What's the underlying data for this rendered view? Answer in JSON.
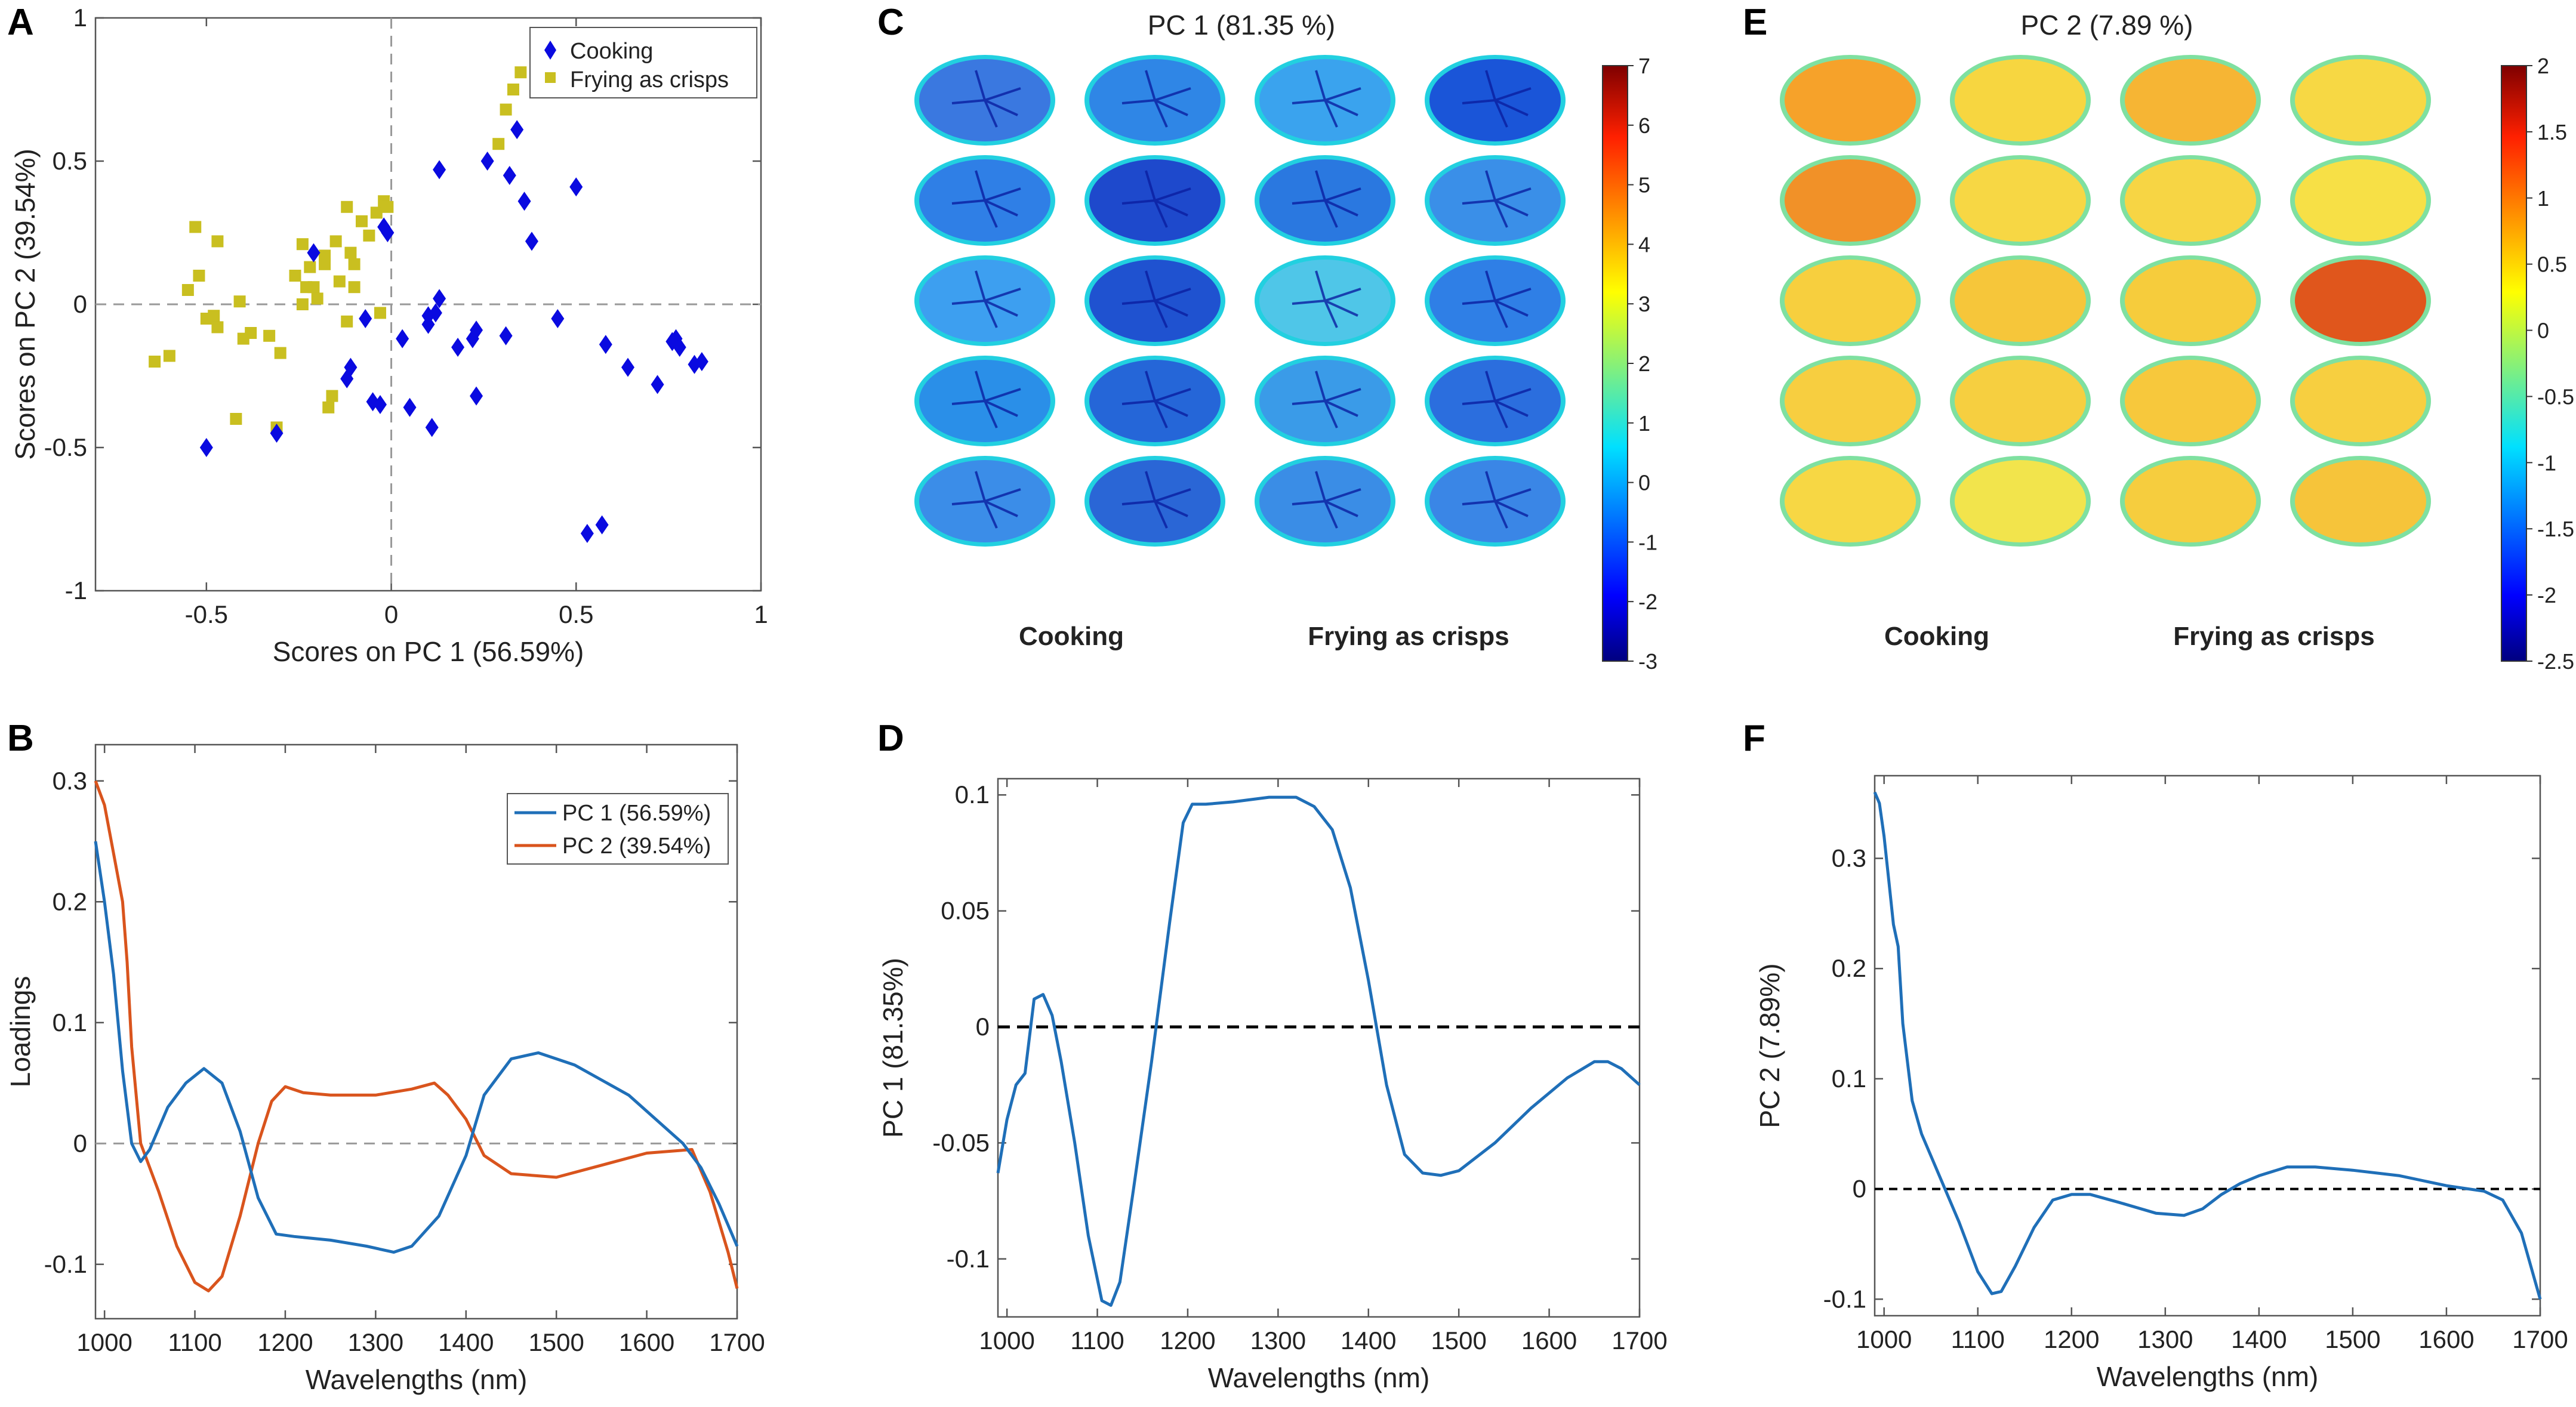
{
  "panels": {
    "A": "A",
    "B": "B",
    "C": "C",
    "D": "D",
    "E": "E",
    "F": "F"
  },
  "colors": {
    "pc1": "#1f6fb8",
    "pc2": "#d9541d",
    "cooking": "#0a0ae0",
    "frying": "#c9bf20",
    "dash": "#999999"
  },
  "chart_data": [
    {
      "id": "A",
      "type": "scatter",
      "title": "",
      "xlabel": "Scores on PC 1 (56.59%)",
      "ylabel": "Scores on PC 2 (39.54%)",
      "xlim": [
        -0.8,
        1.0
      ],
      "ylim": [
        -1.0,
        1.0
      ],
      "xticks": [
        "-0.5",
        "0",
        "0.5",
        "1"
      ],
      "xtick_values": [
        -0.5,
        0,
        0.5,
        1
      ],
      "yticks": [
        "-1",
        "-0.5",
        "0",
        "0.5",
        "1"
      ],
      "ytick_values": [
        -1,
        -0.5,
        0,
        0.5,
        1
      ],
      "legend": [
        "Cooking",
        "Frying as crisps"
      ],
      "series": [
        {
          "name": "Cooking",
          "points": [
            [
              -0.5,
              -0.5
            ],
            [
              -0.31,
              -0.45
            ],
            [
              -0.21,
              0.18
            ],
            [
              -0.11,
              -0.22
            ],
            [
              -0.12,
              -0.26
            ],
            [
              -0.07,
              -0.05
            ],
            [
              -0.05,
              -0.34
            ],
            [
              -0.03,
              -0.35
            ],
            [
              -0.02,
              0.27
            ],
            [
              -0.01,
              0.25
            ],
            [
              0.03,
              -0.12
            ],
            [
              0.05,
              -0.36
            ],
            [
              0.1,
              -0.04
            ],
            [
              0.1,
              -0.07
            ],
            [
              0.12,
              -0.03
            ],
            [
              0.13,
              0.02
            ],
            [
              0.11,
              -0.43
            ],
            [
              0.13,
              0.47
            ],
            [
              0.18,
              -0.15
            ],
            [
              0.22,
              -0.12
            ],
            [
              0.23,
              -0.09
            ],
            [
              0.23,
              -0.32
            ],
            [
              0.26,
              0.5
            ],
            [
              0.31,
              -0.11
            ],
            [
              0.32,
              0.45
            ],
            [
              0.34,
              0.61
            ],
            [
              0.36,
              0.36
            ],
            [
              0.38,
              0.22
            ],
            [
              0.45,
              -0.05
            ],
            [
              0.5,
              0.41
            ],
            [
              0.53,
              -0.8
            ],
            [
              0.57,
              -0.77
            ],
            [
              0.58,
              -0.14
            ],
            [
              0.64,
              -0.22
            ],
            [
              0.72,
              -0.28
            ],
            [
              0.76,
              -0.13
            ],
            [
              0.77,
              -0.12
            ],
            [
              0.78,
              -0.15
            ],
            [
              0.82,
              -0.21
            ],
            [
              0.84,
              -0.2
            ]
          ]
        },
        {
          "name": "Frying as crisps",
          "points": [
            [
              -0.64,
              -0.2
            ],
            [
              -0.6,
              -0.18
            ],
            [
              -0.55,
              0.05
            ],
            [
              -0.53,
              0.27
            ],
            [
              -0.52,
              0.1
            ],
            [
              -0.5,
              -0.05
            ],
            [
              -0.48,
              -0.04
            ],
            [
              -0.47,
              -0.08
            ],
            [
              -0.47,
              0.22
            ],
            [
              -0.42,
              -0.4
            ],
            [
              -0.41,
              0.01
            ],
            [
              -0.4,
              -0.12
            ],
            [
              -0.38,
              -0.1
            ],
            [
              -0.33,
              -0.11
            ],
            [
              -0.31,
              -0.43
            ],
            [
              -0.3,
              -0.17
            ],
            [
              -0.26,
              0.1
            ],
            [
              -0.24,
              0.21
            ],
            [
              -0.24,
              0.0
            ],
            [
              -0.23,
              0.06
            ],
            [
              -0.22,
              0.13
            ],
            [
              -0.21,
              0.06
            ],
            [
              -0.2,
              0.02
            ],
            [
              -0.18,
              0.14
            ],
            [
              -0.18,
              0.17
            ],
            [
              -0.17,
              -0.36
            ],
            [
              -0.16,
              -0.32
            ],
            [
              -0.15,
              0.22
            ],
            [
              -0.14,
              0.08
            ],
            [
              -0.12,
              -0.06
            ],
            [
              -0.12,
              0.34
            ],
            [
              -0.11,
              0.18
            ],
            [
              -0.1,
              0.14
            ],
            [
              -0.1,
              0.06
            ],
            [
              -0.08,
              0.29
            ],
            [
              -0.06,
              0.24
            ],
            [
              -0.04,
              0.32
            ],
            [
              -0.03,
              -0.03
            ],
            [
              -0.02,
              0.36
            ],
            [
              -0.01,
              0.34
            ],
            [
              0.29,
              0.56
            ],
            [
              0.31,
              0.68
            ],
            [
              0.33,
              0.75
            ],
            [
              0.35,
              0.81
            ]
          ]
        }
      ]
    },
    {
      "id": "B",
      "type": "line",
      "title": "",
      "xlabel": "Wavelengths (nm)",
      "ylabel": "Loadings",
      "xlim": [
        990,
        1700
      ],
      "ylim": [
        -0.145,
        0.33
      ],
      "xticks": [
        "1000",
        "1100",
        "1200",
        "1300",
        "1400",
        "1500",
        "1600",
        "1700"
      ],
      "xtick_values": [
        1000,
        1100,
        1200,
        1300,
        1400,
        1500,
        1600,
        1700
      ],
      "yticks": [
        "-0.1",
        "0",
        "0.1",
        "0.2",
        "0.3"
      ],
      "ytick_values": [
        -0.1,
        0,
        0.1,
        0.2,
        0.3
      ],
      "legend": [
        "PC 1 (56.59%)",
        "PC 2 (39.54%)"
      ],
      "series": [
        {
          "name": "PC 1 (56.59%)",
          "x": [
            990,
            1000,
            1010,
            1020,
            1030,
            1040,
            1050,
            1070,
            1090,
            1110,
            1130,
            1150,
            1170,
            1190,
            1210,
            1250,
            1290,
            1320,
            1340,
            1370,
            1400,
            1420,
            1450,
            1480,
            1520,
            1580,
            1640,
            1660,
            1680,
            1700
          ],
          "values": [
            0.25,
            0.2,
            0.14,
            0.06,
            0.0,
            -0.015,
            -0.005,
            0.03,
            0.05,
            0.062,
            0.05,
            0.01,
            -0.045,
            -0.075,
            -0.077,
            -0.08,
            -0.085,
            -0.09,
            -0.085,
            -0.06,
            -0.01,
            0.04,
            0.07,
            0.075,
            0.065,
            0.04,
            0.0,
            -0.02,
            -0.05,
            -0.085
          ]
        },
        {
          "name": "PC 2 (39.54%)",
          "x": [
            990,
            1000,
            1010,
            1020,
            1025,
            1030,
            1040,
            1060,
            1080,
            1100,
            1115,
            1130,
            1150,
            1170,
            1185,
            1200,
            1220,
            1250,
            1300,
            1340,
            1365,
            1380,
            1400,
            1420,
            1450,
            1500,
            1550,
            1600,
            1650,
            1670,
            1690,
            1700
          ],
          "values": [
            0.3,
            0.28,
            0.24,
            0.2,
            0.15,
            0.08,
            0.0,
            -0.04,
            -0.085,
            -0.115,
            -0.122,
            -0.11,
            -0.06,
            0.0,
            0.035,
            0.047,
            0.042,
            0.04,
            0.04,
            0.045,
            0.05,
            0.04,
            0.02,
            -0.01,
            -0.025,
            -0.028,
            -0.018,
            -0.008,
            -0.005,
            -0.04,
            -0.09,
            -0.12
          ]
        }
      ],
      "reference_line": 0
    },
    {
      "id": "D",
      "type": "line",
      "title": "",
      "xlabel": "Wavelengths (nm)",
      "ylabel": "PC 1 (81.35%)",
      "xlim": [
        990,
        1700
      ],
      "ylim": [
        -0.125,
        0.107
      ],
      "xticks": [
        "1000",
        "1100",
        "1200",
        "1300",
        "1400",
        "1500",
        "1600",
        "1700"
      ],
      "xtick_values": [
        1000,
        1100,
        1200,
        1300,
        1400,
        1500,
        1600,
        1700
      ],
      "yticks": [
        "-0.1",
        "-0.05",
        "0",
        "0.05",
        "0.1"
      ],
      "ytick_values": [
        -0.1,
        -0.05,
        0,
        0.05,
        0.1
      ],
      "series": [
        {
          "name": "PC 1 (81.35%)",
          "x": [
            990,
            1000,
            1010,
            1020,
            1030,
            1040,
            1050,
            1060,
            1075,
            1090,
            1105,
            1115,
            1125,
            1140,
            1160,
            1180,
            1195,
            1205,
            1220,
            1250,
            1290,
            1320,
            1340,
            1360,
            1380,
            1400,
            1420,
            1440,
            1460,
            1480,
            1500,
            1540,
            1580,
            1620,
            1650,
            1665,
            1680,
            1700
          ],
          "values": [
            -0.063,
            -0.04,
            -0.025,
            -0.02,
            0.012,
            0.014,
            0.005,
            -0.015,
            -0.05,
            -0.09,
            -0.118,
            -0.12,
            -0.11,
            -0.07,
            -0.015,
            0.045,
            0.088,
            0.096,
            0.096,
            0.097,
            0.099,
            0.099,
            0.095,
            0.085,
            0.06,
            0.02,
            -0.025,
            -0.055,
            -0.063,
            -0.064,
            -0.062,
            -0.05,
            -0.035,
            -0.022,
            -0.015,
            -0.015,
            -0.018,
            -0.025
          ]
        }
      ],
      "reference_line": 0
    },
    {
      "id": "F",
      "type": "line",
      "title": "",
      "xlabel": "Wavelengths (nm)",
      "ylabel": "PC 2 (7.89%)",
      "xlim": [
        990,
        1700
      ],
      "ylim": [
        -0.115,
        0.375
      ],
      "xticks": [
        "1000",
        "1100",
        "1200",
        "1300",
        "1400",
        "1500",
        "1600",
        "1700"
      ],
      "xtick_values": [
        1000,
        1100,
        1200,
        1300,
        1400,
        1500,
        1600,
        1700
      ],
      "yticks": [
        "-0.1",
        "0",
        "0.1",
        "0.2",
        "0.3"
      ],
      "ytick_values": [
        -0.1,
        0,
        0.1,
        0.2,
        0.3
      ],
      "series": [
        {
          "name": "PC 2 (7.89%)",
          "x": [
            990,
            995,
            1000,
            1005,
            1010,
            1015,
            1020,
            1030,
            1040,
            1050,
            1060,
            1080,
            1100,
            1115,
            1125,
            1140,
            1160,
            1180,
            1200,
            1220,
            1250,
            1290,
            1320,
            1340,
            1360,
            1380,
            1400,
            1430,
            1460,
            1500,
            1550,
            1600,
            1640,
            1660,
            1680,
            1700
          ],
          "values": [
            0.36,
            0.35,
            0.32,
            0.28,
            0.24,
            0.22,
            0.15,
            0.08,
            0.05,
            0.03,
            0.01,
            -0.03,
            -0.075,
            -0.095,
            -0.093,
            -0.07,
            -0.035,
            -0.01,
            -0.005,
            -0.005,
            -0.012,
            -0.022,
            -0.024,
            -0.018,
            -0.005,
            0.005,
            0.012,
            0.02,
            0.02,
            0.017,
            0.012,
            0.003,
            -0.002,
            -0.01,
            -0.04,
            -0.1
          ]
        }
      ],
      "reference_line": 0
    },
    {
      "id": "C",
      "type": "heatmap",
      "title": "PC 1 (81.35 %)",
      "colorbar_ticks": [
        "7",
        "6",
        "5",
        "4",
        "3",
        "2",
        "1",
        "0",
        "-1",
        "-2",
        "-3"
      ],
      "colorbar_values": [
        7,
        6,
        5,
        4,
        3,
        2,
        1,
        0,
        -1,
        -2,
        -3
      ],
      "group_labels": [
        "Cooking",
        "Frying as crisps"
      ],
      "grid_rows": 5,
      "grid_cols": 4
    },
    {
      "id": "E",
      "type": "heatmap",
      "title": "PC 2 (7.89 %)",
      "colorbar_ticks": [
        "2",
        "1.5",
        "1",
        "0.5",
        "0",
        "-0.5",
        "-1",
        "-1.5",
        "-2",
        "-2.5"
      ],
      "colorbar_values": [
        2,
        1.5,
        1,
        0.5,
        0,
        -0.5,
        -1,
        -1.5,
        -2,
        -2.5
      ],
      "group_labels": [
        "Cooking",
        "Frying as crisps"
      ],
      "grid_rows": 5,
      "grid_cols": 4
    }
  ]
}
